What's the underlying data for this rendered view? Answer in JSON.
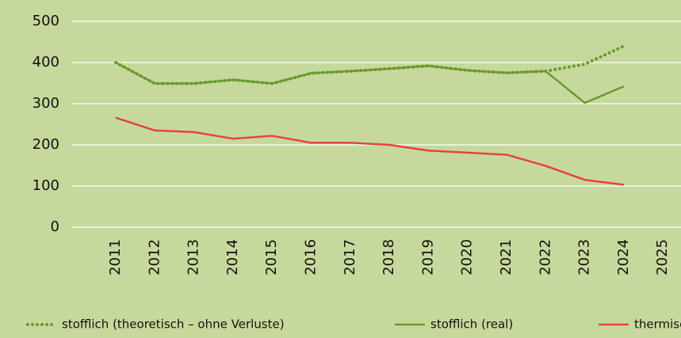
{
  "chart_data": {
    "type": "line",
    "categories": [
      "2011",
      "2012",
      "2013",
      "2014",
      "2015",
      "2016",
      "2017",
      "2018",
      "2019",
      "2020",
      "2021",
      "2022",
      "2023",
      "2024",
      "2025"
    ],
    "series": [
      {
        "name": "stofflich (theoretisch – ohne Verluste)",
        "color": "#6b9a2c",
        "style": "dotted",
        "values": [
          400,
          349,
          349,
          358,
          349,
          374,
          379,
          385,
          392,
          381,
          375,
          379,
          396,
          440,
          null
        ]
      },
      {
        "name": "stofflich (real)",
        "color": "#6b9a2c",
        "style": "solid",
        "values": [
          400,
          349,
          349,
          358,
          349,
          374,
          379,
          385,
          392,
          381,
          375,
          379,
          302,
          342,
          null
        ]
      },
      {
        "name": "thermisch",
        "color": "#e8423d",
        "style": "solid",
        "values": [
          266,
          235,
          231,
          215,
          222,
          205,
          205,
          200,
          186,
          181,
          176,
          149,
          115,
          103,
          null
        ]
      }
    ],
    "ylim": [
      0,
      500
    ],
    "yticks": [
      0,
      100,
      200,
      300,
      400,
      500
    ],
    "grid": true
  }
}
